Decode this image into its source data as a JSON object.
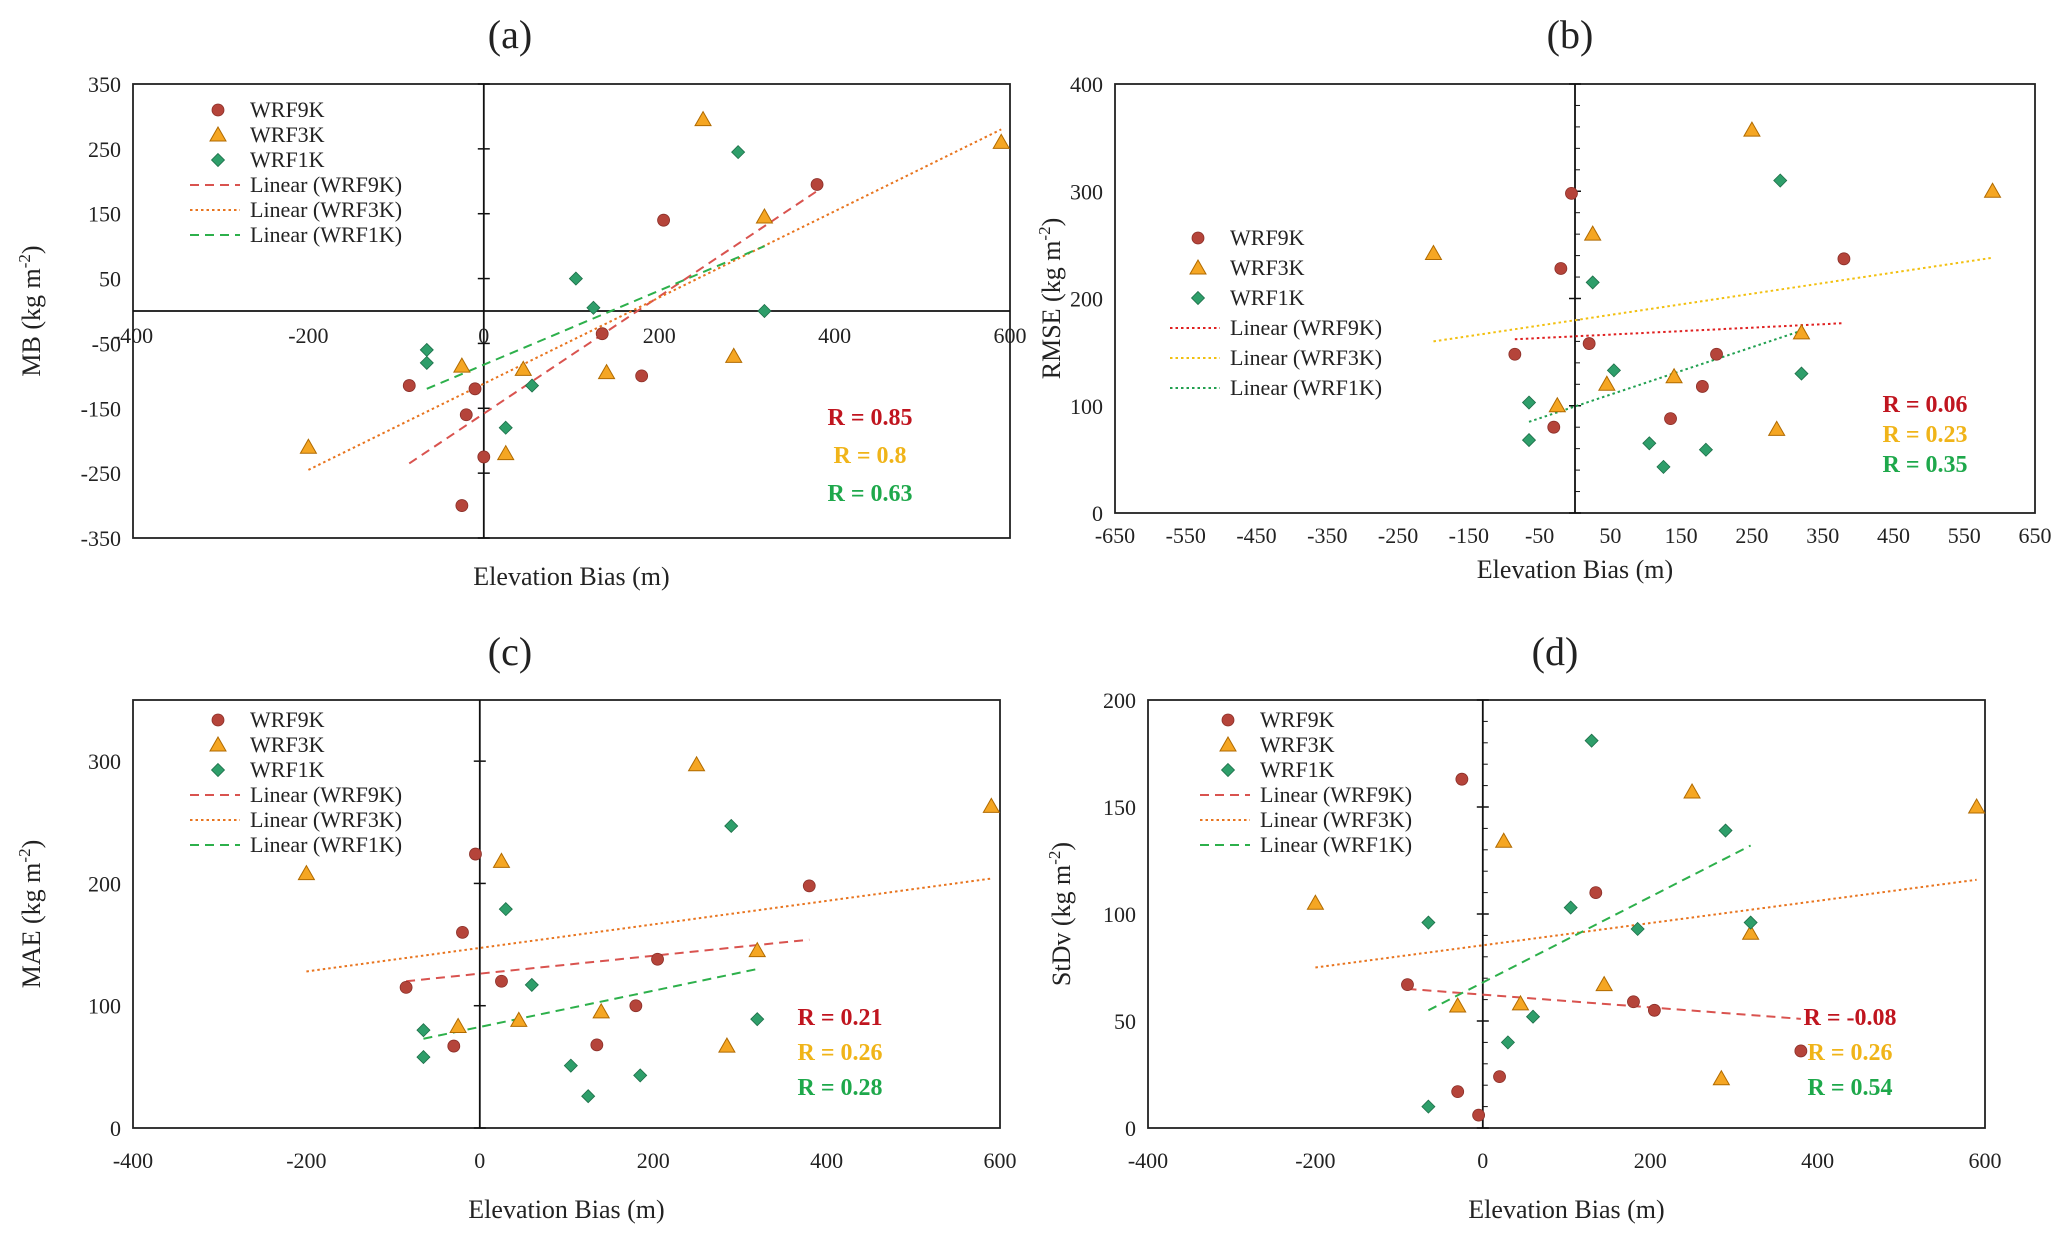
{
  "legend_labels": [
    "WRF9K",
    "WRF3K",
    "WRF1K",
    "Linear (WRF9K)",
    "Linear (WRF3K)",
    "Linear (WRF1K)"
  ],
  "chart_data": [
    {
      "type": "scatter",
      "panel": "(a)",
      "xlabel": "Elevation Bias (m)",
      "ylabel": "MB (kg m",
      "ylabel_sup": "-2",
      "ylabel_close": ")",
      "xlim": [
        -400,
        600
      ],
      "ylim": [
        -350,
        350
      ],
      "xticks": [
        -400,
        -200,
        0,
        200,
        400,
        600
      ],
      "xtick_labels": [
        "-400",
        "-200",
        "0",
        "200",
        "400",
        "600"
      ],
      "yticks": [
        -350,
        -250,
        -150,
        -50,
        50,
        150,
        250,
        350
      ],
      "ytick_labels": [
        "-350",
        "-250",
        "-150",
        "-50",
        "50",
        "150",
        "250",
        "350"
      ],
      "axes_cross_at_zero": true,
      "grid": false,
      "legend": "top-left",
      "trend_styles": [
        "dashed",
        "dotted",
        "dashed"
      ],
      "series": [
        {
          "name": "WRF9K",
          "color": "#b5443a",
          "marker": "circle",
          "x": [
            -85,
            -25,
            -20,
            -10,
            0,
            135,
            180,
            205,
            380
          ],
          "y": [
            -115,
            -300,
            -160,
            -120,
            -225,
            -35,
            -100,
            140,
            195
          ]
        },
        {
          "name": "WRF3K",
          "color": "#f5a623",
          "marker": "triangle",
          "x": [
            -200,
            -25,
            25,
            45,
            140,
            250,
            285,
            320,
            590
          ],
          "y": [
            -210,
            -85,
            -220,
            -90,
            -95,
            295,
            -70,
            145,
            260
          ]
        },
        {
          "name": "WRF1K",
          "color": "#2e9e6a",
          "marker": "diamond",
          "x": [
            -65,
            -65,
            25,
            55,
            105,
            125,
            290,
            320
          ],
          "y": [
            -60,
            -80,
            -180,
            -115,
            50,
            5,
            245,
            0
          ]
        }
      ],
      "trendlines": [
        {
          "name": "Linear (WRF9K)",
          "color": "#d9534f",
          "x": [
            -85,
            380
          ],
          "y": [
            -235,
            185
          ]
        },
        {
          "name": "Linear (WRF3K)",
          "color": "#e8741e",
          "x": [
            -200,
            590
          ],
          "y": [
            -245,
            280
          ]
        },
        {
          "name": "Linear (WRF1K)",
          "color": "#2db04b",
          "x": [
            -65,
            320
          ],
          "y": [
            -120,
            100
          ]
        }
      ],
      "r_values": [
        {
          "text": "R = 0.85",
          "color": "#c0151f"
        },
        {
          "text": "R = 0.8",
          "color": "#f0b419"
        },
        {
          "text": "R = 0.63",
          "color": "#1ea84b"
        }
      ]
    },
    {
      "type": "scatter",
      "panel": "(b)",
      "xlabel": "Elevation Bias (m)",
      "ylabel": "RMSE (kg m",
      "ylabel_sup": "-2",
      "ylabel_close": ")",
      "xlim": [
        -650,
        650
      ],
      "ylim": [
        0,
        400
      ],
      "xticks": [
        -650,
        -550,
        -450,
        -350,
        -250,
        -150,
        -50,
        50,
        150,
        250,
        350,
        450,
        550,
        650
      ],
      "xtick_labels": [
        "-650",
        "-550",
        "-450",
        "-350",
        "-250",
        "-150",
        "-50",
        "50",
        "150",
        "250",
        "350",
        "450",
        "550",
        "650"
      ],
      "yticks": [
        0,
        100,
        200,
        300,
        400
      ],
      "ytick_labels": [
        "0",
        "100",
        "200",
        "300",
        "400"
      ],
      "axes_cross_at_zero": true,
      "grid": false,
      "legend": "center-left",
      "trend_styles": [
        "dotted",
        "dotted",
        "dotted"
      ],
      "series": [
        {
          "name": "WRF9K",
          "color": "#b5443a",
          "marker": "circle",
          "x": [
            -85,
            -30,
            -20,
            -5,
            20,
            135,
            180,
            200,
            380
          ],
          "y": [
            148,
            80,
            228,
            298,
            158,
            88,
            118,
            148,
            237
          ]
        },
        {
          "name": "WRF3K",
          "color": "#f5a623",
          "marker": "triangle",
          "x": [
            -200,
            -25,
            25,
            45,
            140,
            250,
            285,
            320,
            590
          ],
          "y": [
            242,
            100,
            260,
            120,
            127,
            357,
            78,
            168,
            300
          ]
        },
        {
          "name": "WRF1K",
          "color": "#2e9e6a",
          "marker": "diamond",
          "x": [
            -65,
            -65,
            25,
            55,
            105,
            125,
            185,
            290,
            320
          ],
          "y": [
            103,
            68,
            215,
            133,
            65,
            43,
            59,
            310,
            130
          ]
        }
      ],
      "trendlines": [
        {
          "name": "Linear (WRF9K)",
          "color": "#e02020",
          "x": [
            -85,
            380
          ],
          "y": [
            162,
            177
          ]
        },
        {
          "name": "Linear (WRF3K)",
          "color": "#f2c010",
          "x": [
            -200,
            590
          ],
          "y": [
            160,
            238
          ]
        },
        {
          "name": "Linear (WRF1K)",
          "color": "#20a050",
          "x": [
            -65,
            320
          ],
          "y": [
            85,
            170
          ]
        }
      ],
      "r_values": [
        {
          "text": "R = 0.06",
          "color": "#c0151f"
        },
        {
          "text": "R = 0.23",
          "color": "#f0b419"
        },
        {
          "text": "R = 0.35",
          "color": "#1ea84b"
        }
      ]
    },
    {
      "type": "scatter",
      "panel": "(c)",
      "xlabel": "Elevation Bias (m)",
      "ylabel": "MAE (kg m",
      "ylabel_sup": "-2",
      "ylabel_close": ")",
      "xlim": [
        -400,
        600
      ],
      "ylim": [
        0,
        350
      ],
      "xticks": [
        -400,
        -200,
        0,
        200,
        400,
        600
      ],
      "xtick_labels": [
        "-400",
        "-200",
        "0",
        "200",
        "400",
        "600"
      ],
      "yticks": [
        0,
        100,
        200,
        300
      ],
      "ytick_labels": [
        "0",
        "100",
        "200",
        "300"
      ],
      "axes_cross_at_zero": true,
      "grid": false,
      "legend": "top-left",
      "trend_styles": [
        "dashed",
        "dotted",
        "dashed"
      ],
      "series": [
        {
          "name": "WRF9K",
          "color": "#b5443a",
          "marker": "circle",
          "x": [
            -85,
            -30,
            -20,
            -5,
            25,
            135,
            180,
            205,
            380
          ],
          "y": [
            115,
            67,
            160,
            224,
            120,
            68,
            100,
            138,
            198
          ]
        },
        {
          "name": "WRF3K",
          "color": "#f5a623",
          "marker": "triangle",
          "x": [
            -200,
            -25,
            25,
            45,
            140,
            250,
            285,
            320,
            590
          ],
          "y": [
            208,
            83,
            218,
            88,
            95,
            297,
            67,
            145,
            263
          ]
        },
        {
          "name": "WRF1K",
          "color": "#2e9e6a",
          "marker": "diamond",
          "x": [
            -65,
            -65,
            30,
            60,
            105,
            125,
            185,
            290,
            320
          ],
          "y": [
            80,
            58,
            179,
            117,
            51,
            26,
            43,
            247,
            89
          ]
        }
      ],
      "trendlines": [
        {
          "name": "Linear (WRF9K)",
          "color": "#d9534f",
          "x": [
            -85,
            380
          ],
          "y": [
            120,
            154
          ]
        },
        {
          "name": "Linear (WRF3K)",
          "color": "#e8741e",
          "x": [
            -200,
            590
          ],
          "y": [
            128,
            204
          ]
        },
        {
          "name": "Linear (WRF1K)",
          "color": "#2db04b",
          "x": [
            -65,
            320
          ],
          "y": [
            73,
            130
          ]
        }
      ],
      "r_values": [
        {
          "text": "R = 0.21",
          "color": "#c0151f"
        },
        {
          "text": "R = 0.26",
          "color": "#f0b419"
        },
        {
          "text": "R = 0.28",
          "color": "#1ea84b"
        }
      ]
    },
    {
      "type": "scatter",
      "panel": "(d)",
      "xlabel": "Elevation Bias (m)",
      "ylabel": "StDv (kg m",
      "ylabel_sup": "-2",
      "ylabel_close": ")",
      "xlim": [
        -400,
        600
      ],
      "ylim": [
        0,
        200
      ],
      "xticks": [
        -400,
        -200,
        0,
        200,
        400,
        600
      ],
      "xtick_labels": [
        "-400",
        "-200",
        "0",
        "200",
        "400",
        "600"
      ],
      "yticks": [
        0,
        50,
        100,
        150,
        200
      ],
      "ytick_labels": [
        "0",
        "50",
        "100",
        "150",
        "200"
      ],
      "axes_cross_at_zero": true,
      "grid": false,
      "legend": "top-left",
      "trend_styles": [
        "dashed",
        "dotted",
        "dashed"
      ],
      "series": [
        {
          "name": "WRF9K",
          "color": "#b5443a",
          "marker": "circle",
          "x": [
            -90,
            -30,
            -25,
            -5,
            20,
            135,
            180,
            205,
            380
          ],
          "y": [
            67,
            17,
            163,
            6,
            24,
            110,
            59,
            55,
            36
          ]
        },
        {
          "name": "WRF3K",
          "color": "#f5a623",
          "marker": "triangle",
          "x": [
            -200,
            -30,
            25,
            45,
            145,
            250,
            285,
            320,
            590
          ],
          "y": [
            105,
            57,
            134,
            58,
            67,
            157,
            23,
            91,
            150
          ]
        },
        {
          "name": "WRF1K",
          "color": "#2e9e6a",
          "marker": "diamond",
          "x": [
            -65,
            -65,
            30,
            60,
            105,
            130,
            185,
            290,
            320
          ],
          "y": [
            96,
            10,
            40,
            52,
            103,
            181,
            93,
            139,
            96
          ]
        }
      ],
      "trendlines": [
        {
          "name": "Linear (WRF9K)",
          "color": "#d9534f",
          "x": [
            -90,
            380
          ],
          "y": [
            65,
            51
          ]
        },
        {
          "name": "Linear (WRF3K)",
          "color": "#e8741e",
          "x": [
            -200,
            590
          ],
          "y": [
            75,
            116
          ]
        },
        {
          "name": "Linear (WRF1K)",
          "color": "#2db04b",
          "x": [
            -65,
            320
          ],
          "y": [
            55,
            132
          ]
        }
      ],
      "r_values": [
        {
          "text": "R = -0.08",
          "color": "#c0151f"
        },
        {
          "text": "R = 0.26",
          "color": "#f0b419"
        },
        {
          "text": "R = 0.54",
          "color": "#1ea84b"
        }
      ]
    }
  ]
}
